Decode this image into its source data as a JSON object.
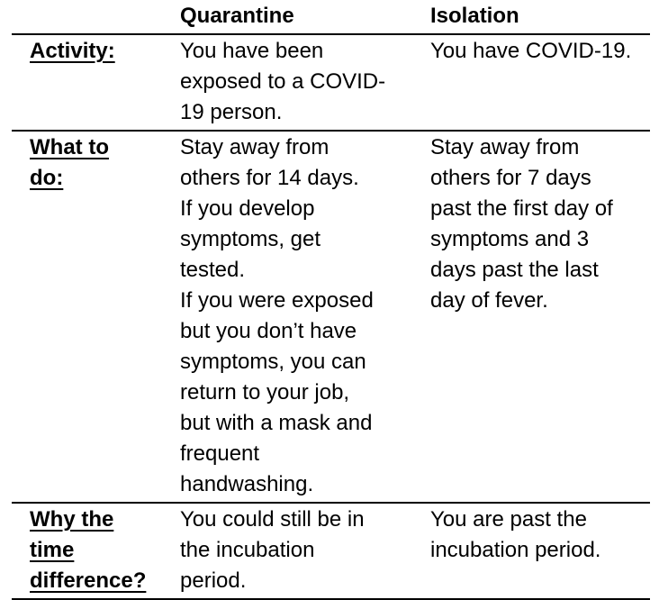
{
  "table": {
    "header": {
      "label": "",
      "quarantine": "Quarantine",
      "isolation": "Isolation"
    },
    "rows": {
      "activity": {
        "label": "Activity:",
        "quarantine": "You have been\nexposed to a COVID-\n19 person.",
        "isolation": "You have COVID-19."
      },
      "what_to_do": {
        "label": "What to\ndo:",
        "quarantine": "Stay away from\nothers for 14 days.\nIf you develop\nsymptoms, get\ntested.\nIf you were exposed\nbut you don’t have\nsymptoms, you can\nreturn to your job,\nbut with a mask and\nfrequent\nhandwashing.",
        "isolation": "Stay away from\nothers for 7 days\npast the first day of\nsymptoms and 3\ndays past the last\nday of fever."
      },
      "why_time_difference": {
        "label": "Why the\ntime\ndifference?",
        "quarantine": "You could still be in\nthe incubation\nperiod.",
        "isolation": "You are past the\nincubation period."
      }
    },
    "colors": {
      "text": "#000000",
      "border": "#000000",
      "background": "#ffffff"
    }
  }
}
